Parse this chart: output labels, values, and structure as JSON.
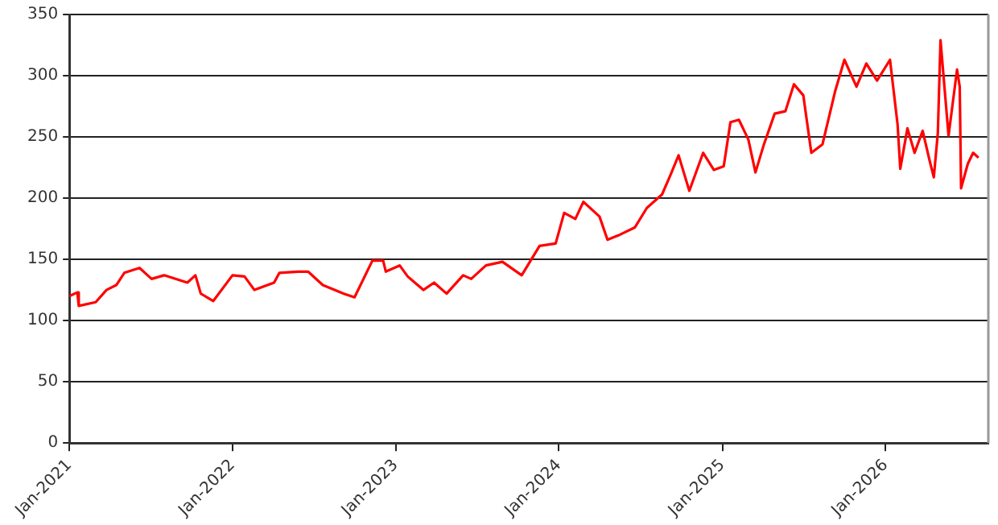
{
  "chart_data": {
    "type": "line",
    "x": [
      "2021-01-01",
      "2021-01-19",
      "2021-01-22",
      "2021-03-01",
      "2021-03-25",
      "2021-04-16",
      "2021-05-04",
      "2021-06-07",
      "2021-07-04",
      "2021-08-01",
      "2021-09-22",
      "2021-10-10",
      "2021-10-22",
      "2021-11-19",
      "2022-01-01",
      "2022-01-28",
      "2022-02-19",
      "2022-04-04",
      "2022-04-16",
      "2022-05-28",
      "2022-06-19",
      "2022-07-22",
      "2022-09-07",
      "2022-10-01",
      "2022-11-10",
      "2022-12-04",
      "2022-12-10",
      "2023-01-10",
      "2023-01-28",
      "2023-03-04",
      "2023-03-28",
      "2023-04-25",
      "2023-06-01",
      "2023-06-19",
      "2023-07-22",
      "2023-08-28",
      "2023-10-10",
      "2023-11-19",
      "2023-12-25",
      "2024-01-13",
      "2024-02-07",
      "2024-02-25",
      "2024-04-01",
      "2024-04-19",
      "2024-05-16",
      "2024-06-19",
      "2024-07-16",
      "2024-08-19",
      "2024-09-07",
      "2024-09-25",
      "2024-10-19",
      "2024-11-19",
      "2024-12-13",
      "2025-01-04",
      "2025-01-19",
      "2025-02-07",
      "2025-02-28",
      "2025-03-16",
      "2025-04-04",
      "2025-04-28",
      "2025-05-22",
      "2025-06-10",
      "2025-07-01",
      "2025-07-19",
      "2025-08-13",
      "2025-09-10",
      "2025-10-01",
      "2025-10-28",
      "2025-11-19",
      "2025-12-13",
      "2026-01-11",
      "2026-01-28",
      "2026-02-03",
      "2026-02-19",
      "2026-03-07",
      "2026-03-25",
      "2026-04-10",
      "2026-04-19",
      "2026-04-28",
      "2026-05-04",
      "2026-05-22",
      "2026-06-10",
      "2026-06-16",
      "2026-06-19",
      "2026-07-04",
      "2026-07-16",
      "2026-07-28"
    ],
    "series": [
      {
        "color": "#ff0000",
        "values": [
          120,
          123,
          112,
          115,
          125,
          129,
          139,
          143,
          134,
          137,
          131,
          137,
          122,
          116,
          137,
          136,
          125,
          131,
          139,
          140,
          140,
          129,
          122,
          119,
          149,
          149,
          140,
          145,
          136,
          125,
          131,
          122,
          137,
          134,
          145,
          148,
          137,
          161,
          163,
          188,
          183,
          197,
          185,
          166,
          170,
          176,
          192,
          203,
          219,
          235,
          206,
          237,
          223,
          226,
          262,
          264,
          248,
          221,
          244,
          269,
          271,
          293,
          284,
          237,
          244,
          287,
          313,
          291,
          310,
          296,
          313,
          260,
          224,
          257,
          237,
          255,
          230,
          217,
          253,
          329,
          251,
          305,
          291,
          208,
          228,
          237,
          233
        ]
      }
    ],
    "xlim": [
      "2021-01-01",
      "2026-08-19"
    ],
    "xticks": [
      {
        "value": "2021-01",
        "label": "Jan-2021"
      },
      {
        "value": "2022-01",
        "label": "Jan-2022"
      },
      {
        "value": "2023-01",
        "label": "Jan-2023"
      },
      {
        "value": "2024-01",
        "label": "Jan-2024"
      },
      {
        "value": "2025-01",
        "label": "Jan-2025"
      },
      {
        "value": "2026-01",
        "label": "Jan-2026"
      }
    ],
    "ylim": [
      0,
      350
    ],
    "yticks": [
      0,
      50,
      100,
      150,
      200,
      250,
      300,
      350
    ],
    "grid": "y",
    "legend": false,
    "marker": "none",
    "line_style": "solid"
  }
}
